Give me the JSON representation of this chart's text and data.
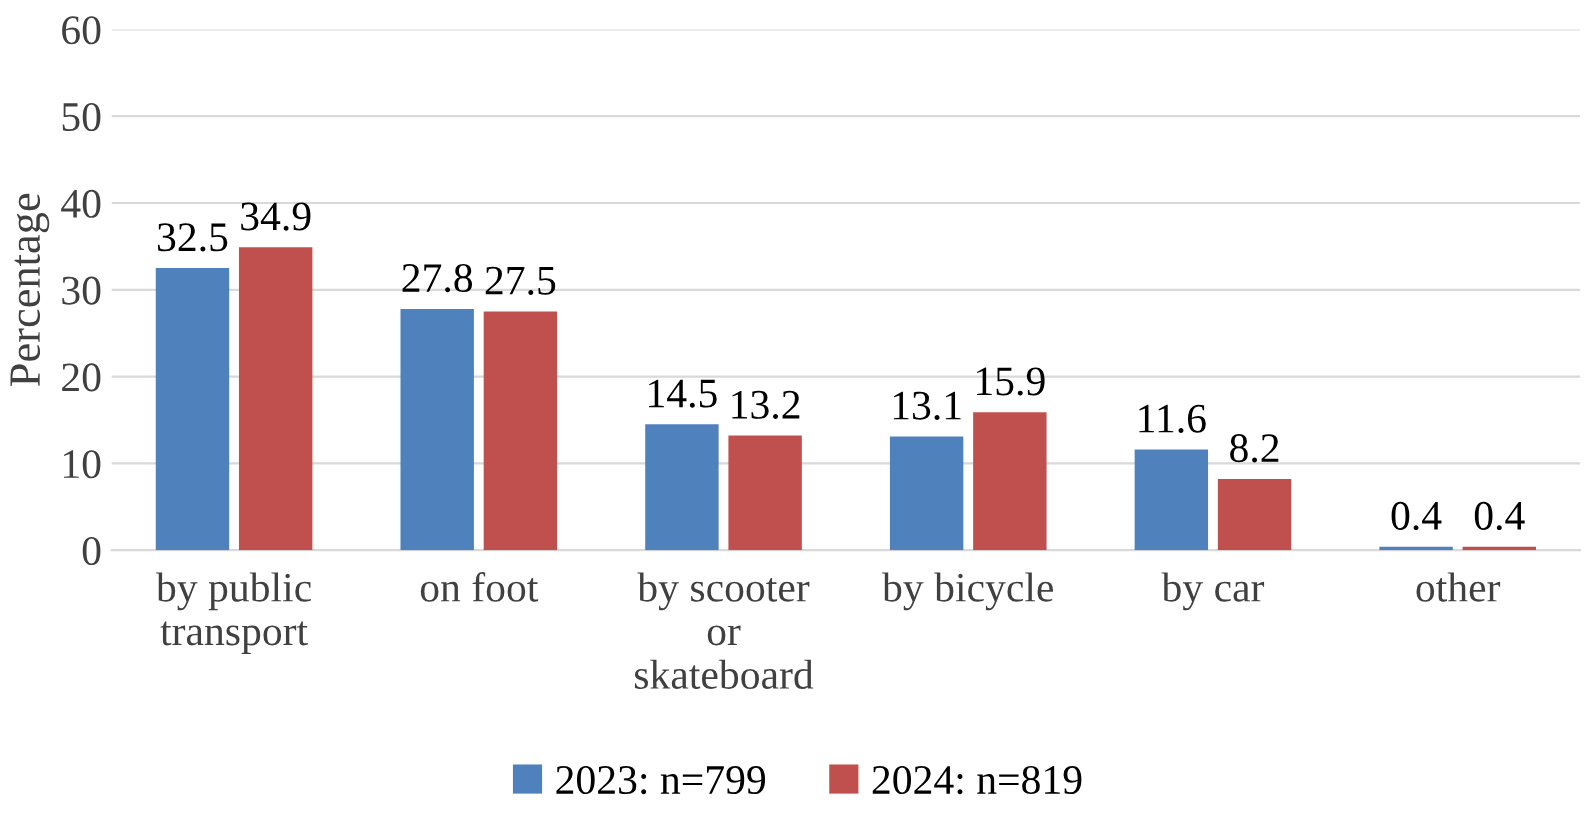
{
  "chart_data": {
    "type": "bar",
    "ylabel": "Percentage",
    "categories": [
      "by public transport",
      "on foot",
      "by scooter or skateboard",
      "by bicycle",
      "by car",
      "other"
    ],
    "series": [
      {
        "name": "2023: n=799",
        "color": "#4f81bd",
        "values": [
          32.5,
          27.8,
          14.5,
          13.1,
          11.6,
          0.4
        ]
      },
      {
        "name": "2024: n=819",
        "color": "#c0504d",
        "values": [
          34.9,
          27.5,
          13.2,
          15.9,
          8.2,
          0.4
        ]
      }
    ],
    "ylim": [
      0,
      60
    ],
    "yticks": [
      0,
      10,
      20,
      30,
      40,
      50,
      60
    ],
    "grid": "y",
    "legend": "bottom",
    "data_labels": true
  }
}
